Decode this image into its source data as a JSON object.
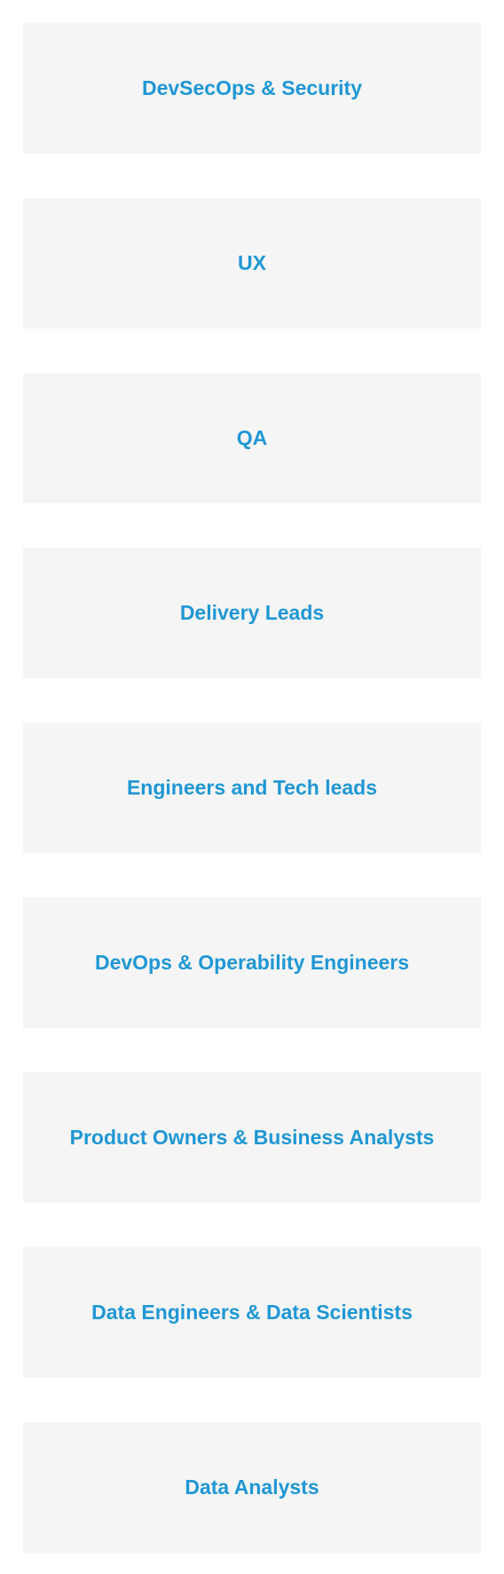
{
  "colors": {
    "background": "#ffffff",
    "card_background": "#f5f5f5",
    "accent": "#1f97d4"
  },
  "cards": [
    {
      "title": "DevSecOps & Security"
    },
    {
      "title": "UX"
    },
    {
      "title": "QA"
    },
    {
      "title": "Delivery Leads"
    },
    {
      "title": "Engineers and Tech leads"
    },
    {
      "title": "DevOps & Operability Engineers"
    },
    {
      "title": "Product Owners & Business Analysts"
    },
    {
      "title": "Data Engineers & Data Scientists"
    },
    {
      "title": "Data Analysts"
    }
  ]
}
